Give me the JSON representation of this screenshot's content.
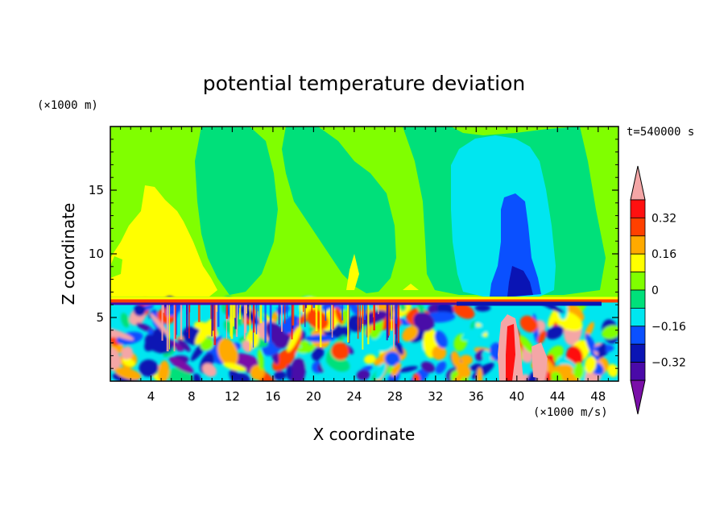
{
  "chart_data": {
    "type": "heatmap",
    "title": "potential temperature deviation",
    "xlabel": "X coordinate",
    "ylabel": "Z coordinate",
    "x_unit": "(×1000 m/s)",
    "y_unit": "(×1000 m)",
    "time_label": "t=540000 s",
    "xlim": [
      0,
      50
    ],
    "ylim": [
      0,
      20
    ],
    "x_ticks": [
      4,
      8,
      12,
      16,
      20,
      24,
      28,
      32,
      36,
      40,
      44,
      48
    ],
    "y_ticks": [
      5,
      10,
      15
    ],
    "colorbar": {
      "levels": [
        -0.4,
        -0.32,
        -0.24,
        -0.16,
        -0.08,
        0,
        0.08,
        0.16,
        0.24,
        0.32,
        0.4
      ],
      "labels": [
        "-0.32",
        "-0.16",
        "0",
        "0.16",
        "0.32"
      ],
      "label_values": [
        -0.32,
        -0.16,
        0,
        0.16,
        0.32
      ],
      "colors": [
        "#7a0fa8",
        "#4a0aa8",
        "#0a14b4",
        "#0a50ff",
        "#00e6f0",
        "#00e07a",
        "#80ff00",
        "#ffff00",
        "#ffaa00",
        "#ff4000",
        "#ff1010",
        "#f4a6a6"
      ],
      "extend": "both"
    },
    "regions": [
      {
        "kind": "background",
        "value": 0.04,
        "color": "#80ff00"
      },
      {
        "kind": "warm_plume",
        "x_center": 6,
        "z_top": 15.5,
        "value": 0.12,
        "color": "#ffff00"
      },
      {
        "kind": "cool_column",
        "x_center": 40,
        "z_top": 19,
        "value": -0.12,
        "color": "#00e6f0"
      },
      {
        "kind": "cold_core",
        "x_center": 40,
        "z_top": 14.5,
        "value": -0.2,
        "color": "#0a50ff"
      },
      {
        "kind": "inversion_layer",
        "z": 6.3,
        "value": 0.3,
        "color": "#ff4000"
      },
      {
        "kind": "turbulent_layer",
        "z_range": [
          0,
          6
        ],
        "value_range": [
          -0.4,
          0.4
        ]
      }
    ]
  }
}
